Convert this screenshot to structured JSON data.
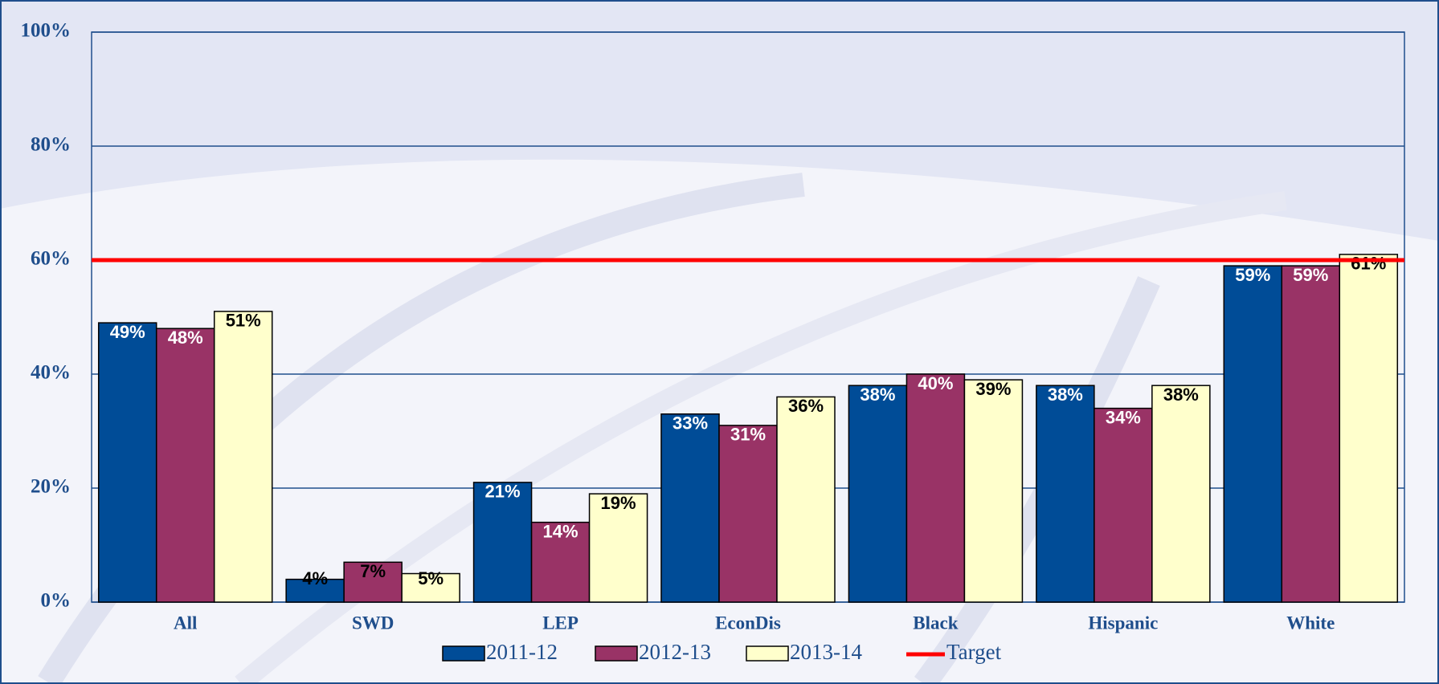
{
  "chart_data": {
    "type": "bar",
    "categories": [
      "All",
      "SWD",
      "LEP",
      "EconDis",
      "Black",
      "Hispanic",
      "White"
    ],
    "series": [
      {
        "name": "2011-12",
        "color": "#004c97",
        "values": [
          49,
          4,
          21,
          33,
          38,
          38,
          59
        ],
        "value_labels": [
          "49%",
          "4%",
          "21%",
          "33%",
          "38%",
          "38%",
          "59%"
        ]
      },
      {
        "name": "2012-13",
        "color": "#993366",
        "values": [
          48,
          7,
          14,
          31,
          40,
          34,
          59
        ],
        "value_labels": [
          "48%",
          "7%",
          "14%",
          "31%",
          "40%",
          "34%",
          "59%"
        ]
      },
      {
        "name": "2013-14",
        "color": "#ffffcc",
        "values": [
          51,
          5,
          19,
          36,
          39,
          38,
          61
        ],
        "value_labels": [
          "51%",
          "5%",
          "19%",
          "36%",
          "39%",
          "38%",
          "61%"
        ]
      }
    ],
    "target": {
      "name": "Target",
      "value": 60,
      "color": "#ff0000"
    },
    "ylim": [
      0,
      100
    ],
    "yticks": [
      {
        "value": 0,
        "label": "0%"
      },
      {
        "value": 20,
        "label": "20%"
      },
      {
        "value": 40,
        "label": "40%"
      },
      {
        "value": 60,
        "label": "60%"
      },
      {
        "value": 80,
        "label": "80%"
      },
      {
        "value": 100,
        "label": "100%"
      }
    ],
    "grid": true
  }
}
